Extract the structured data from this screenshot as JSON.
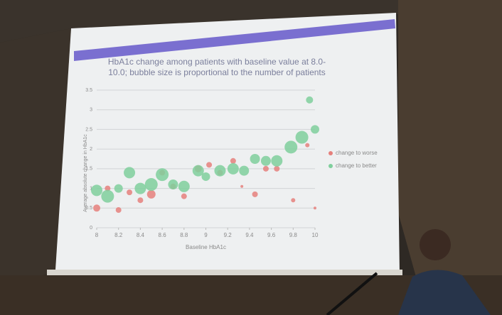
{
  "chart_data": {
    "type": "bubble",
    "title": "HbA1c change among patients with baseline value at 8.0-10.0; bubble size is proportional to the number of patients",
    "xlabel": "Baseline HbA1c",
    "ylabel": "Average absolute change in HbA1c",
    "xlim": [
      8,
      10
    ],
    "ylim": [
      0,
      3.5
    ],
    "xticks": [
      8,
      8.2,
      8.4,
      8.6,
      8.8,
      9,
      9.2,
      9.4,
      9.6,
      9.8,
      10
    ],
    "yticks": [
      0,
      0.5,
      1,
      1.5,
      2,
      2.5,
      3,
      3.5
    ],
    "grid": true,
    "legend": "right",
    "series": [
      {
        "name": "change to worse",
        "color": "#e5807c",
        "x": [
          8.0,
          8.1,
          8.2,
          8.3,
          8.4,
          8.5,
          8.6,
          8.7,
          8.8,
          8.93,
          9.03,
          9.13,
          9.25,
          9.33,
          9.45,
          9.55,
          9.65,
          9.8,
          9.93,
          10.0
        ],
        "values": [
          0.5,
          1.0,
          0.45,
          0.9,
          0.7,
          0.85,
          1.4,
          1.05,
          0.8,
          1.5,
          1.6,
          1.4,
          1.7,
          1.05,
          0.85,
          1.5,
          1.5,
          0.7,
          2.1,
          0.5
        ],
        "sizes": [
          25,
          16,
          16,
          16,
          16,
          36,
          16,
          16,
          16,
          25,
          16,
          16,
          16,
          4,
          16,
          16,
          16,
          9,
          9,
          4
        ]
      },
      {
        "name": "change to better",
        "color": "#7fcf9c",
        "x": [
          8.0,
          8.1,
          8.2,
          8.3,
          8.4,
          8.5,
          8.6,
          8.7,
          8.8,
          8.93,
          9.0,
          9.13,
          9.25,
          9.35,
          9.45,
          9.55,
          9.65,
          9.78,
          9.88,
          9.95,
          10.0
        ],
        "values": [
          0.95,
          0.8,
          1.0,
          1.4,
          1.0,
          1.1,
          1.35,
          1.1,
          1.05,
          1.45,
          1.3,
          1.45,
          1.5,
          1.45,
          1.75,
          1.7,
          1.7,
          2.05,
          2.3,
          3.25,
          2.5
        ],
        "sizes": [
          64,
          81,
          36,
          64,
          64,
          81,
          81,
          49,
          64,
          64,
          36,
          64,
          64,
          49,
          49,
          49,
          64,
          81,
          81,
          25,
          36
        ]
      }
    ]
  }
}
